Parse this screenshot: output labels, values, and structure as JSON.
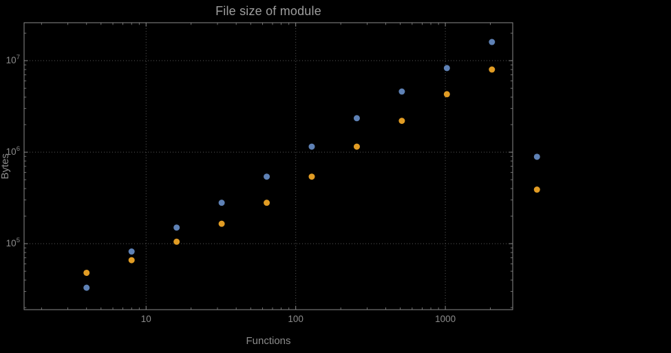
{
  "title": "File size of module",
  "axes": {
    "xlabel": "Functions",
    "ylabel": "Bytes"
  },
  "style": {
    "background": "#000000",
    "frame_color": "#8c8c8c",
    "grid_color": "#5a5a5a",
    "tick_label_color": "#8c8c8c",
    "title_color": "#9e9e9e",
    "point_radius": 4.5
  },
  "chart_data": {
    "type": "scatter",
    "title": "File size of module",
    "xlabel": "Functions",
    "ylabel": "Bytes",
    "x_scale": "log",
    "y_scale": "log",
    "grid": "dotted",
    "legend": "none",
    "x": [
      4,
      8,
      16,
      32,
      64,
      128,
      256,
      512,
      1024,
      2048,
      4096
    ],
    "series": [
      {
        "name": "series-blue",
        "color": "#5e81b5",
        "values": [
          33000,
          82000,
          150000,
          280000,
          540000,
          1150000,
          2350000,
          4600000,
          8300000,
          16000000,
          890000
        ]
      },
      {
        "name": "series-orange",
        "color": "#e19c24",
        "values": [
          48000,
          66000,
          105000,
          165000,
          280000,
          540000,
          1150000,
          2200000,
          4300000,
          8000000,
          390000
        ]
      }
    ],
    "x_ticks": {
      "values": [
        10,
        100,
        1000
      ],
      "labels": [
        "10",
        "100",
        "1000"
      ]
    },
    "y_ticks": {
      "values": [
        100000,
        1000000,
        10000000
      ],
      "labels": [
        "10^5",
        "10^6",
        "10^7"
      ]
    },
    "x_range": [
      1.53,
      2820
    ],
    "y_range": [
      19000,
      26000000
    ]
  }
}
